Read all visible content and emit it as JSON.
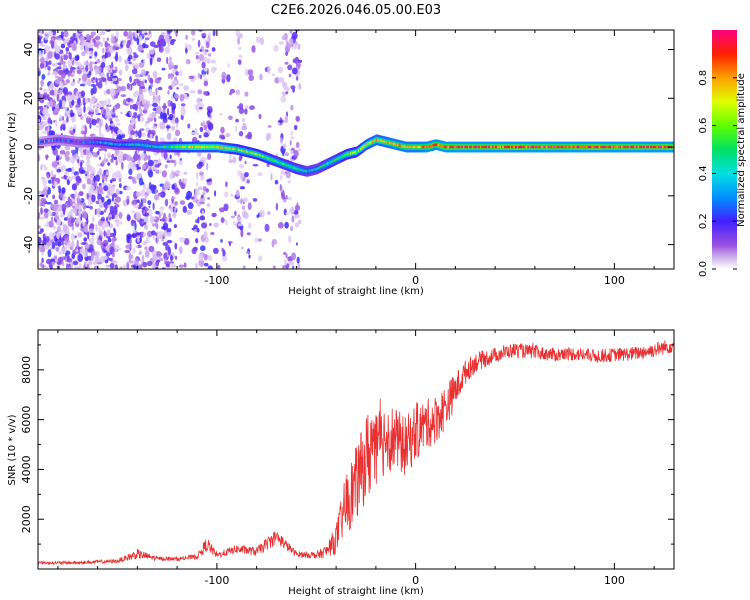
{
  "title": "C2E6.2026.046.05.00.E03",
  "chart_data": [
    {
      "type": "heatmap",
      "title": "C2E6.2026.046.05.00.E03",
      "xlabel": "Height of straight line (km)",
      "ylabel": "Frequency (Hz)",
      "xlim": [
        -190,
        130
      ],
      "ylim": [
        -50,
        48
      ],
      "xticks": [
        -100,
        0,
        100
      ],
      "xtick_labels": [
        "-100",
        "0",
        "100"
      ],
      "yticks": [
        -40,
        -20,
        0,
        20,
        40
      ],
      "ytick_labels": [
        "-40",
        "-20",
        "0",
        "20",
        "40"
      ],
      "colorbar": {
        "label": "Normalized spectral amplitude",
        "range": [
          0,
          1
        ],
        "ticks": [
          0,
          0.2,
          0.4,
          0.6,
          0.8
        ],
        "tick_labels": [
          "0.0",
          "0.2",
          "0.4",
          "0.6",
          "0.8"
        ]
      },
      "ridge": {
        "x": [
          -190,
          -180,
          -170,
          -160,
          -150,
          -140,
          -130,
          -120,
          -110,
          -100,
          -90,
          -80,
          -70,
          -60,
          -55,
          -50,
          -45,
          -40,
          -35,
          -30,
          -25,
          -20,
          -15,
          -10,
          -5,
          0,
          5,
          10,
          15,
          20,
          40,
          60,
          80,
          100,
          120,
          130
        ],
        "freq": [
          2,
          3,
          2,
          2,
          1,
          1,
          0,
          0,
          0,
          0,
          -1,
          -3,
          -6,
          -9,
          -10,
          -9,
          -7,
          -5,
          -3,
          -2,
          1,
          3,
          2,
          1,
          0,
          0,
          0,
          1,
          0,
          0,
          0,
          0,
          0,
          0,
          0,
          0
        ],
        "amplitude": [
          0.15,
          0.2,
          0.2,
          0.3,
          0.3,
          0.4,
          0.4,
          0.6,
          0.7,
          0.7,
          0.6,
          0.6,
          0.5,
          0.5,
          0.4,
          0.4,
          0.5,
          0.5,
          0.6,
          0.6,
          0.7,
          0.75,
          0.75,
          0.8,
          0.8,
          0.8,
          0.85,
          0.85,
          0.9,
          0.9,
          0.9,
          0.9,
          0.9,
          0.9,
          0.9,
          0.9
        ]
      },
      "noise_extent_km": [
        -190,
        -58
      ]
    },
    {
      "type": "line",
      "xlabel": "Height of straight line (km)",
      "ylabel": "SNR (10 * v/v)",
      "xlim": [
        -190,
        130
      ],
      "ylim": [
        0,
        9600
      ],
      "xticks": [
        -100,
        0,
        100
      ],
      "xtick_labels": [
        "-100",
        "0",
        "100"
      ],
      "yticks": [
        2000,
        4000,
        6000,
        8000
      ],
      "ytick_labels": [
        "2000",
        "4000",
        "6000",
        "8000"
      ],
      "series": [
        {
          "name": "SNR",
          "color": "#e83030",
          "x": [
            -190,
            -170,
            -150,
            -140,
            -130,
            -120,
            -110,
            -105,
            -100,
            -90,
            -80,
            -75,
            -70,
            -60,
            -50,
            -45,
            -40,
            -38,
            -35,
            -30,
            -25,
            -22,
            -20,
            -15,
            -10,
            -5,
            0,
            5,
            10,
            15,
            20,
            25,
            30,
            40,
            50,
            60,
            70,
            80,
            90,
            100,
            110,
            120,
            130
          ],
          "values": [
            250,
            250,
            320,
            600,
            420,
            400,
            500,
            1000,
            550,
            800,
            700,
            1000,
            1300,
            600,
            550,
            700,
            1200,
            1800,
            2600,
            3400,
            4400,
            5000,
            4600,
            5400,
            5200,
            4900,
            5500,
            5800,
            6000,
            6500,
            7200,
            7900,
            8300,
            8600,
            8800,
            8700,
            8600,
            8650,
            8550,
            8600,
            8650,
            8800,
            9000
          ],
          "noise": [
            60,
            60,
            80,
            200,
            80,
            80,
            100,
            300,
            120,
            180,
            180,
            260,
            300,
            120,
            140,
            260,
            600,
            800,
            1300,
            1500,
            1700,
            2200,
            1600,
            1500,
            1300,
            1200,
            1200,
            1000,
            1000,
            900,
            700,
            500,
            400,
            300,
            300,
            280,
            280,
            280,
            280,
            280,
            280,
            300,
            300
          ]
        }
      ]
    }
  ]
}
